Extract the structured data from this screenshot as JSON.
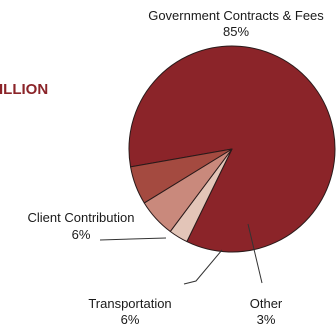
{
  "chart_data": {
    "type": "pie",
    "title": "",
    "partial_title_text": "ILLION",
    "slices": [
      {
        "label": "Government Contracts & Fees",
        "percent_label": "85%",
        "value": 85,
        "color": "#8b2429"
      },
      {
        "label": "Other",
        "percent_label": "3%",
        "value": 3,
        "color": "#e3c5b8"
      },
      {
        "label": "Transportation",
        "percent_label": "6%",
        "value": 6,
        "color": "#c9897c"
      },
      {
        "label": "Client Contribution",
        "percent_label": "6%",
        "value": 6,
        "color": "#a44a40"
      }
    ],
    "legend": "none"
  }
}
